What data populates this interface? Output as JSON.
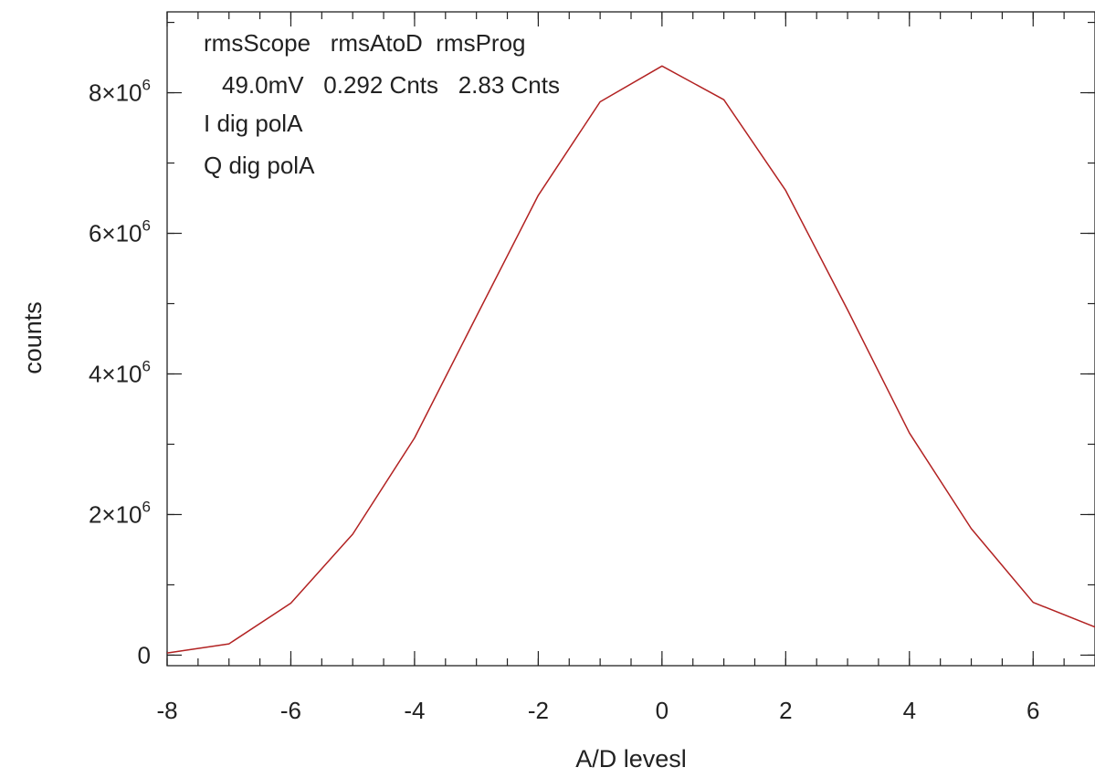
{
  "chart_data": {
    "type": "line",
    "xlabel": "A/D levesl",
    "ylabel": "counts",
    "xlim": [
      -8,
      7
    ],
    "ylim": [
      -150000,
      9150000
    ],
    "x_ticks": [
      {
        "value": -8,
        "label": "-8"
      },
      {
        "value": -6,
        "label": "-6"
      },
      {
        "value": -4,
        "label": "-4"
      },
      {
        "value": -2,
        "label": "-2"
      },
      {
        "value": 0,
        "label": "0"
      },
      {
        "value": 2,
        "label": "2"
      },
      {
        "value": 4,
        "label": "4"
      },
      {
        "value": 6,
        "label": "6"
      }
    ],
    "y_ticks": [
      {
        "value": 0,
        "base": "0",
        "exp": ""
      },
      {
        "value": 2000000,
        "base": "2×10",
        "exp": "6"
      },
      {
        "value": 4000000,
        "base": "4×10",
        "exp": "6"
      },
      {
        "value": 6000000,
        "base": "6×10",
        "exp": "6"
      },
      {
        "value": 8000000,
        "base": "8×10",
        "exp": "6"
      }
    ],
    "x_minor_step": 0.5,
    "y_minor_step": 1000000,
    "grid": false,
    "series": [
      {
        "name": "Q dig polA",
        "color": "#b22222",
        "x": [
          -8,
          -7,
          -6,
          -5,
          -4,
          -3,
          -2,
          -1,
          0,
          1,
          2,
          3,
          4,
          5,
          6,
          7
        ],
        "y": [
          30000,
          160000,
          740000,
          1720000,
          3090000,
          4820000,
          6540000,
          7870000,
          8380000,
          7900000,
          6610000,
          4910000,
          3160000,
          1800000,
          750000,
          400000
        ]
      }
    ],
    "annotations": {
      "header_line": "rmsScope   rmsAtoD  rmsProg",
      "values_line": "49.0mV   0.292 Cnts   2.83 Cnts",
      "legend": [
        {
          "label": "I dig polA",
          "color": "#222222"
        },
        {
          "label": "Q dig polA",
          "color": "#e8231b"
        }
      ]
    }
  }
}
